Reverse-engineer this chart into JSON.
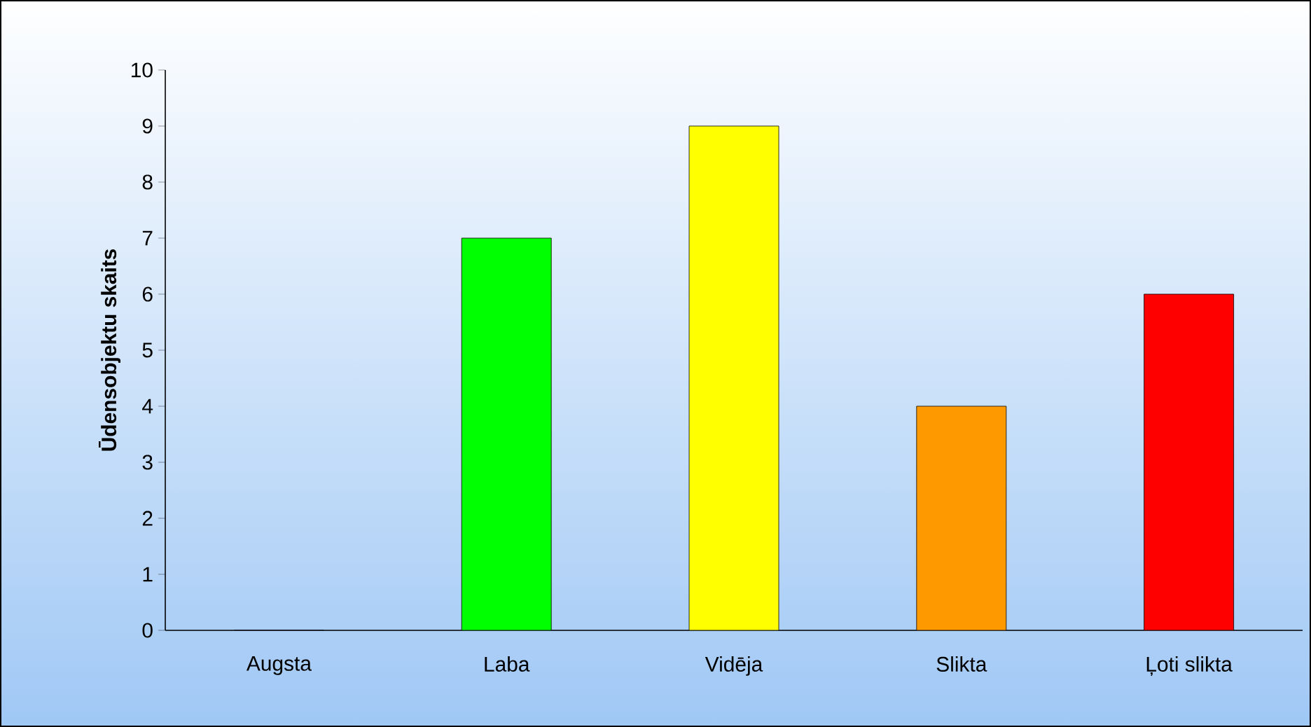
{
  "chart_data": {
    "type": "bar",
    "ylabel": "Ūdensobjektu skaits",
    "categories": [
      "Augsta",
      "Laba",
      "Vidēja",
      "Slikta",
      "Ļoti slikta"
    ],
    "values": [
      0,
      7,
      9,
      4,
      6
    ],
    "colors": [
      "#0000ff",
      "#00ff00",
      "#ffff00",
      "#ff9900",
      "#ff0000"
    ],
    "ylim": [
      0,
      10
    ],
    "yticks": [
      0,
      1,
      2,
      3,
      4,
      5,
      6,
      7,
      8,
      9,
      10
    ]
  }
}
